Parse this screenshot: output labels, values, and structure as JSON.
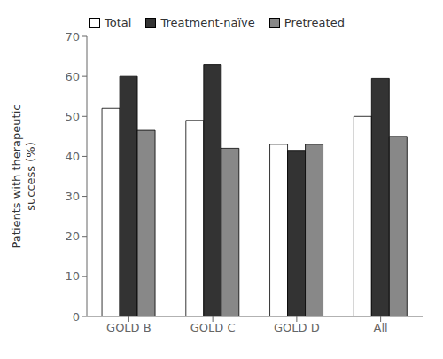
{
  "chart_data": {
    "type": "bar",
    "categories": [
      "GOLD B",
      "GOLD C",
      "GOLD D",
      "All"
    ],
    "series": [
      {
        "name": "Total",
        "color": "#ffffff",
        "values": [
          52,
          49,
          43,
          50
        ]
      },
      {
        "name": "Treatment-naïve",
        "color": "#333333",
        "values": [
          60,
          63,
          41.5,
          59.5
        ]
      },
      {
        "name": "Pretreated",
        "color": "#888888",
        "values": [
          46.5,
          42,
          43,
          45
        ]
      }
    ],
    "ylabel": "Patients with therapeutic\nsuccess (%)",
    "ylim": [
      0,
      70
    ],
    "yticks": [
      0,
      10,
      20,
      30,
      40,
      50,
      60,
      70
    ],
    "grid": false,
    "legend": "top"
  }
}
